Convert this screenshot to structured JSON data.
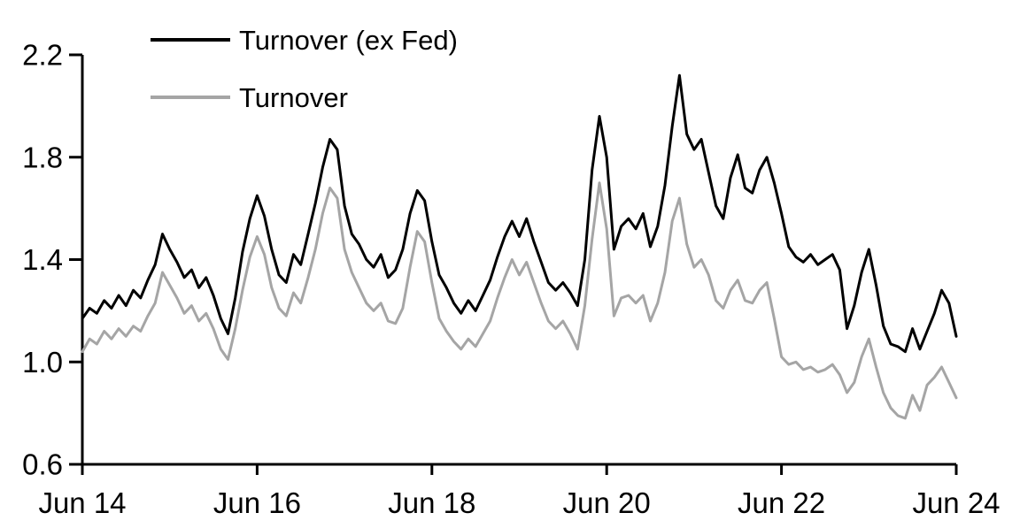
{
  "chart_data": {
    "type": "line",
    "title": "",
    "xlabel": "",
    "ylabel": "",
    "grid": false,
    "legend_position": "top-left-inside",
    "background_color": "#ffffff",
    "axis_color": "#000000",
    "x_axis": {
      "min": 2014.458,
      "max": 2024.458,
      "ticks": [
        {
          "t": 2014.458,
          "label": "Jun 14"
        },
        {
          "t": 2016.458,
          "label": "Jun 16"
        },
        {
          "t": 2018.458,
          "label": "Jun 18"
        },
        {
          "t": 2020.458,
          "label": "Jun 20"
        },
        {
          "t": 2022.458,
          "label": "Jun 22"
        },
        {
          "t": 2024.458,
          "label": "Jun 24"
        }
      ]
    },
    "y_axis": {
      "min": 0.6,
      "max": 2.2,
      "ticks": [
        {
          "v": 2.2,
          "label": "2.2"
        },
        {
          "v": 1.8,
          "label": "1.8"
        },
        {
          "v": 1.4,
          "label": "1.4"
        },
        {
          "v": 1.0,
          "label": "1.0"
        },
        {
          "v": 0.6,
          "label": "0.6"
        }
      ]
    },
    "x0": 2014.458,
    "dx_years": 0.0833333,
    "series": [
      {
        "name": "Turnover (ex Fed)",
        "color": "#000000",
        "values": [
          1.17,
          1.21,
          1.19,
          1.24,
          1.21,
          1.26,
          1.22,
          1.28,
          1.25,
          1.32,
          1.38,
          1.5,
          1.44,
          1.39,
          1.33,
          1.36,
          1.29,
          1.33,
          1.26,
          1.17,
          1.11,
          1.25,
          1.43,
          1.56,
          1.65,
          1.57,
          1.44,
          1.34,
          1.31,
          1.42,
          1.38,
          1.5,
          1.62,
          1.76,
          1.87,
          1.83,
          1.61,
          1.5,
          1.46,
          1.4,
          1.37,
          1.42,
          1.33,
          1.36,
          1.44,
          1.58,
          1.67,
          1.63,
          1.47,
          1.34,
          1.29,
          1.23,
          1.19,
          1.24,
          1.2,
          1.26,
          1.32,
          1.41,
          1.49,
          1.55,
          1.49,
          1.56,
          1.47,
          1.39,
          1.31,
          1.28,
          1.31,
          1.27,
          1.22,
          1.4,
          1.75,
          1.96,
          1.8,
          1.44,
          1.53,
          1.56,
          1.52,
          1.58,
          1.45,
          1.53,
          1.69,
          1.92,
          2.12,
          1.89,
          1.83,
          1.87,
          1.74,
          1.61,
          1.56,
          1.72,
          1.81,
          1.68,
          1.66,
          1.75,
          1.8,
          1.7,
          1.58,
          1.45,
          1.41,
          1.39,
          1.42,
          1.38,
          1.4,
          1.42,
          1.36,
          1.13,
          1.22,
          1.35,
          1.44,
          1.3,
          1.14,
          1.07,
          1.06,
          1.04,
          1.13,
          1.05,
          1.12,
          1.19,
          1.28,
          1.23,
          1.1
        ]
      },
      {
        "name": "Turnover",
        "color": "#a5a5a5",
        "values": [
          1.04,
          1.09,
          1.07,
          1.12,
          1.09,
          1.13,
          1.1,
          1.14,
          1.12,
          1.18,
          1.23,
          1.35,
          1.3,
          1.25,
          1.19,
          1.22,
          1.16,
          1.19,
          1.13,
          1.05,
          1.01,
          1.13,
          1.28,
          1.41,
          1.49,
          1.42,
          1.29,
          1.21,
          1.18,
          1.27,
          1.23,
          1.33,
          1.44,
          1.58,
          1.68,
          1.64,
          1.44,
          1.35,
          1.29,
          1.23,
          1.2,
          1.23,
          1.16,
          1.15,
          1.21,
          1.37,
          1.51,
          1.47,
          1.31,
          1.17,
          1.12,
          1.08,
          1.05,
          1.09,
          1.06,
          1.11,
          1.16,
          1.25,
          1.33,
          1.4,
          1.34,
          1.39,
          1.31,
          1.23,
          1.16,
          1.13,
          1.16,
          1.11,
          1.05,
          1.22,
          1.48,
          1.7,
          1.52,
          1.18,
          1.25,
          1.26,
          1.23,
          1.26,
          1.16,
          1.23,
          1.35,
          1.55,
          1.64,
          1.46,
          1.37,
          1.4,
          1.34,
          1.24,
          1.21,
          1.28,
          1.32,
          1.24,
          1.23,
          1.28,
          1.31,
          1.17,
          1.02,
          0.99,
          1.0,
          0.97,
          0.98,
          0.96,
          0.97,
          0.99,
          0.95,
          0.88,
          0.92,
          1.02,
          1.09,
          0.98,
          0.88,
          0.82,
          0.79,
          0.78,
          0.87,
          0.81,
          0.91,
          0.94,
          0.98,
          0.92,
          0.86
        ]
      }
    ]
  }
}
